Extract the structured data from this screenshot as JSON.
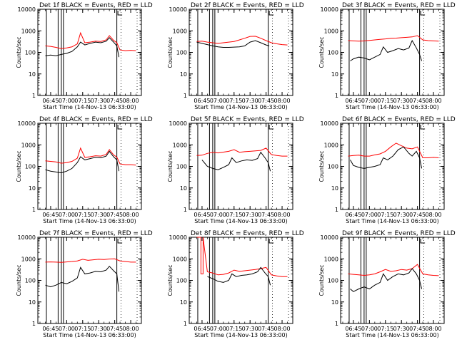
{
  "x_tick_labels": [
    "06:45",
    "07:00",
    "07:15",
    "07:30",
    "07:45",
    "08:00"
  ],
  "y_tick_labels": [
    "1",
    "10",
    "100",
    "1000",
    "10000"
  ],
  "ylabel": "Counts/sec",
  "xlabel": "Start Time (14-Nov-13 06:33:00)",
  "colors": {
    "events": "#000000",
    "lld": "#ff0000",
    "axes": "#000000"
  },
  "chart_data": [
    {
      "type": "line",
      "title": "Det 1f BLACK = Events, RED = LLD",
      "x_ticks": [
        "06:45",
        "07:00",
        "07:15",
        "07:30",
        "07:45",
        "08:00"
      ],
      "y_scale": "log",
      "ylim": [
        1,
        10000
      ],
      "xlabel": "Start Time (14-Nov-13 06:33:00)",
      "ylabel": "Counts/sec",
      "series": [
        {
          "name": "Events",
          "color": "#000000",
          "x": [
            "06:40",
            "06:45",
            "06:50",
            "06:55",
            "07:00",
            "07:05",
            "07:10",
            "07:13",
            "07:17",
            "07:22",
            "07:27",
            "07:32",
            "07:37",
            "07:40",
            "07:44",
            "07:47",
            "07:49"
          ],
          "values": [
            70,
            75,
            70,
            80,
            90,
            110,
            180,
            300,
            220,
            260,
            300,
            280,
            330,
            480,
            300,
            200,
            60
          ]
        },
        {
          "name": "LLD",
          "color": "#ff0000",
          "x": [
            "06:40",
            "06:45",
            "06:50",
            "06:55",
            "07:00",
            "07:05",
            "07:10",
            "07:13",
            "07:17",
            "07:22",
            "07:27",
            "07:32",
            "07:37",
            "07:40",
            "07:44",
            "07:47",
            "07:50",
            "07:55",
            "08:00",
            "08:05"
          ],
          "values": [
            200,
            190,
            170,
            150,
            160,
            180,
            250,
            800,
            280,
            300,
            330,
            320,
            380,
            600,
            360,
            280,
            130,
            120,
            125,
            120
          ]
        }
      ]
    },
    {
      "type": "line",
      "title": "Det 2f BLACK = Events, RED = LLD",
      "x_ticks": [
        "06:45",
        "07:00",
        "07:15",
        "07:30",
        "07:45",
        "08:00"
      ],
      "y_scale": "log",
      "ylim": [
        1,
        10000
      ],
      "xlabel": "Start Time (14-Nov-13 06:33:00)",
      "ylabel": "Counts/sec",
      "series": [
        {
          "name": "Events",
          "color": "#000000",
          "x": [
            "06:40",
            "06:45",
            "06:50",
            "06:55",
            "07:00",
            "07:05",
            "07:10",
            "07:15",
            "07:20",
            "07:25",
            "07:30",
            "07:35",
            "07:40",
            "07:45",
            "07:48"
          ],
          "values": [
            300,
            260,
            230,
            200,
            180,
            170,
            170,
            175,
            180,
            200,
            300,
            350,
            280,
            220,
            200
          ]
        },
        {
          "name": "LLD",
          "color": "#ff0000",
          "x": [
            "06:40",
            "06:45",
            "06:50",
            "06:55",
            "07:00",
            "07:05",
            "07:10",
            "07:15",
            "07:20",
            "07:25",
            "07:30",
            "07:35",
            "07:40",
            "07:45",
            "07:50",
            "07:55",
            "08:00",
            "08:05"
          ],
          "values": [
            320,
            330,
            300,
            280,
            260,
            280,
            300,
            320,
            380,
            450,
            550,
            560,
            450,
            350,
            280,
            250,
            230,
            220
          ]
        }
      ]
    },
    {
      "type": "line",
      "title": "Det 3f BLACK = Events, RED = LLD",
      "x_ticks": [
        "06:45",
        "07:00",
        "07:15",
        "07:30",
        "07:45",
        "08:00"
      ],
      "y_scale": "log",
      "ylim": [
        1,
        10000
      ],
      "xlabel": "Start Time (14-Nov-13 06:33:00)",
      "ylabel": "Counts/sec",
      "series": [
        {
          "name": "Events",
          "color": "#000000",
          "x": [
            "06:42",
            "06:45",
            "06:50",
            "06:55",
            "07:00",
            "07:05",
            "07:10",
            "07:13",
            "07:17",
            "07:22",
            "07:27",
            "07:32",
            "07:37",
            "07:40",
            "07:44",
            "07:47",
            "07:49"
          ],
          "values": [
            40,
            50,
            60,
            55,
            45,
            60,
            80,
            180,
            100,
            120,
            150,
            130,
            160,
            350,
            160,
            80,
            40
          ]
        },
        {
          "name": "LLD",
          "color": "#ff0000",
          "x": [
            "06:40",
            "06:45",
            "06:50",
            "06:55",
            "07:00",
            "07:05",
            "07:10",
            "07:15",
            "07:20",
            "07:25",
            "07:30",
            "07:35",
            "07:40",
            "07:45",
            "07:50",
            "07:55",
            "08:00",
            "08:05"
          ],
          "values": [
            350,
            340,
            330,
            340,
            360,
            380,
            400,
            420,
            450,
            460,
            480,
            500,
            520,
            600,
            380,
            350,
            340,
            330
          ]
        }
      ]
    },
    {
      "type": "line",
      "title": "Det 4f BLACK = Events, RED = LLD",
      "x_ticks": [
        "06:45",
        "07:00",
        "07:15",
        "07:30",
        "07:45",
        "08:00"
      ],
      "y_scale": "log",
      "ylim": [
        1,
        10000
      ],
      "xlabel": "Start Time (14-Nov-13 06:33:00)",
      "ylabel": "Counts/sec",
      "series": [
        {
          "name": "Events",
          "color": "#000000",
          "x": [
            "06:40",
            "06:45",
            "06:50",
            "06:55",
            "07:00",
            "07:05",
            "07:10",
            "07:13",
            "07:17",
            "07:22",
            "07:27",
            "07:32",
            "07:37",
            "07:40",
            "07:44",
            "07:47",
            "07:49"
          ],
          "values": [
            70,
            60,
            55,
            50,
            60,
            80,
            150,
            280,
            200,
            230,
            260,
            250,
            300,
            500,
            280,
            200,
            60
          ]
        },
        {
          "name": "LLD",
          "color": "#ff0000",
          "x": [
            "06:40",
            "06:45",
            "06:50",
            "06:55",
            "07:00",
            "07:05",
            "07:10",
            "07:13",
            "07:17",
            "07:22",
            "07:27",
            "07:32",
            "07:37",
            "07:40",
            "07:44",
            "07:47",
            "07:50",
            "07:55",
            "08:00",
            "08:05"
          ],
          "values": [
            180,
            170,
            160,
            140,
            150,
            170,
            240,
            700,
            260,
            280,
            310,
            300,
            360,
            600,
            340,
            270,
            130,
            120,
            120,
            115
          ]
        }
      ]
    },
    {
      "type": "line",
      "title": "Det 5f BLACK = Events, RED = LLD",
      "x_ticks": [
        "06:45",
        "07:00",
        "07:15",
        "07:30",
        "07:45",
        "08:00"
      ],
      "y_scale": "log",
      "ylim": [
        1,
        10000
      ],
      "xlabel": "Start Time (14-Nov-13 06:33:00)",
      "ylabel": "Counts/sec",
      "series": [
        {
          "name": "Events",
          "color": "#000000",
          "x": [
            "06:45",
            "06:50",
            "06:55",
            "07:00",
            "07:05",
            "07:10",
            "07:13",
            "07:17",
            "07:22",
            "07:27",
            "07:32",
            "07:37",
            "07:40",
            "07:44",
            "07:47",
            "07:49"
          ],
          "values": [
            200,
            100,
            80,
            70,
            90,
            120,
            250,
            150,
            180,
            200,
            190,
            230,
            450,
            250,
            150,
            60
          ]
        },
        {
          "name": "LLD",
          "color": "#ff0000",
          "x": [
            "06:40",
            "06:45",
            "06:50",
            "06:55",
            "07:00",
            "07:05",
            "07:10",
            "07:15",
            "07:20",
            "07:25",
            "07:30",
            "07:35",
            "07:40",
            "07:45",
            "07:50",
            "07:55",
            "08:00",
            "08:05"
          ],
          "values": [
            320,
            330,
            400,
            450,
            420,
            460,
            500,
            600,
            450,
            480,
            500,
            520,
            550,
            700,
            350,
            320,
            300,
            300
          ]
        }
      ]
    },
    {
      "type": "line",
      "title": "Det 6f BLACK = Events, RED = LLD",
      "x_ticks": [
        "06:45",
        "07:00",
        "07:15",
        "07:30",
        "07:45",
        "08:00"
      ],
      "y_scale": "log",
      "ylim": [
        1,
        10000
      ],
      "xlabel": "Start Time (14-Nov-13 06:33:00)",
      "ylabel": "Counts/sec",
      "series": [
        {
          "name": "Events",
          "color": "#000000",
          "x": [
            "06:42",
            "06:45",
            "06:50",
            "06:55",
            "07:00",
            "07:05",
            "07:10",
            "07:13",
            "07:17",
            "07:22",
            "07:27",
            "07:32",
            "07:37",
            "07:40",
            "07:44",
            "07:47",
            "07:49"
          ],
          "values": [
            200,
            110,
            90,
            80,
            90,
            100,
            120,
            250,
            200,
            300,
            600,
            800,
            400,
            300,
            500,
            250,
            80
          ]
        },
        {
          "name": "LLD",
          "color": "#ff0000",
          "x": [
            "06:40",
            "06:45",
            "06:50",
            "06:55",
            "07:00",
            "07:05",
            "07:10",
            "07:15",
            "07:20",
            "07:25",
            "07:30",
            "07:35",
            "07:40",
            "07:45",
            "07:50",
            "07:55",
            "08:00",
            "08:05"
          ],
          "values": [
            300,
            320,
            330,
            300,
            300,
            340,
            380,
            500,
            800,
            1200,
            900,
            700,
            650,
            800,
            250,
            250,
            260,
            250
          ]
        }
      ]
    },
    {
      "type": "line",
      "title": "Det 7f BLACK = Events, RED = LLD",
      "x_ticks": [
        "06:45",
        "07:00",
        "07:15",
        "07:30",
        "07:45",
        "08:00"
      ],
      "y_scale": "log",
      "ylim": [
        1,
        10000
      ],
      "xlabel": "Start Time (14-Nov-13 06:33:00)",
      "ylabel": "Counts/sec",
      "series": [
        {
          "name": "Events",
          "color": "#000000",
          "x": [
            "06:40",
            "06:45",
            "06:50",
            "06:55",
            "07:00",
            "07:05",
            "07:10",
            "07:13",
            "07:17",
            "07:22",
            "07:27",
            "07:32",
            "07:37",
            "07:40",
            "07:44",
            "07:47",
            "07:49"
          ],
          "values": [
            60,
            50,
            60,
            80,
            70,
            90,
            130,
            400,
            200,
            220,
            260,
            250,
            300,
            450,
            280,
            200,
            30
          ]
        },
        {
          "name": "LLD",
          "color": "#ff0000",
          "x": [
            "06:40",
            "06:45",
            "06:50",
            "06:55",
            "07:00",
            "07:05",
            "07:10",
            "07:15",
            "07:20",
            "07:25",
            "07:30",
            "07:35",
            "07:40",
            "07:45",
            "07:50",
            "07:55",
            "08:00",
            "08:05"
          ],
          "values": [
            700,
            720,
            700,
            680,
            720,
            750,
            800,
            950,
            850,
            900,
            950,
            920,
            980,
            1000,
            800,
            750,
            700,
            700
          ]
        }
      ]
    },
    {
      "type": "line",
      "title": "Det 8f BLACK = Events, RED = LLD",
      "x_ticks": [
        "06:45",
        "07:00",
        "07:15",
        "07:30",
        "07:45",
        "08:00"
      ],
      "y_scale": "log",
      "ylim": [
        1,
        10000
      ],
      "xlabel": "Start Time (14-Nov-13 06:33:00)",
      "ylabel": "Counts/sec",
      "series": [
        {
          "name": "Events",
          "color": "#000000",
          "x": [
            "06:50",
            "06:55",
            "07:00",
            "07:05",
            "07:10",
            "07:13",
            "07:17",
            "07:22",
            "07:27",
            "07:32",
            "07:37",
            "07:40",
            "07:44",
            "07:47",
            "07:49"
          ],
          "values": [
            150,
            120,
            90,
            80,
            100,
            200,
            150,
            170,
            180,
            200,
            250,
            400,
            220,
            150,
            60
          ]
        },
        {
          "name": "LLD",
          "color": "#ff0000",
          "x": [
            "06:40",
            "06:44",
            "06:44",
            "06:46",
            "06:46",
            "06:50",
            "06:55",
            "07:00",
            "07:05",
            "07:10",
            "07:15",
            "07:20",
            "07:25",
            "07:30",
            "07:35",
            "07:40",
            "07:45",
            "07:50",
            "07:55",
            "08:00",
            "08:05"
          ],
          "values": [
            10000,
            10000,
            200,
            200,
            10000,
            250,
            220,
            180,
            190,
            220,
            300,
            260,
            280,
            300,
            320,
            350,
            400,
            180,
            160,
            150,
            150
          ]
        }
      ]
    },
    {
      "type": "line",
      "title": "Det 9f BLACK = Events, RED = LLD",
      "x_ticks": [
        "06:45",
        "07:00",
        "07:15",
        "07:30",
        "07:45",
        "08:00"
      ],
      "y_scale": "log",
      "ylim": [
        1,
        10000
      ],
      "xlabel": "Start Time (14-Nov-13 06:33:00)",
      "ylabel": "Counts/sec",
      "series": [
        {
          "name": "Events",
          "color": "#000000",
          "x": [
            "06:42",
            "06:45",
            "06:50",
            "06:55",
            "07:00",
            "07:05",
            "07:10",
            "07:13",
            "07:17",
            "07:22",
            "07:27",
            "07:32",
            "07:37",
            "07:40",
            "07:44",
            "07:47",
            "07:49"
          ],
          "values": [
            40,
            30,
            40,
            50,
            40,
            60,
            80,
            200,
            100,
            150,
            200,
            180,
            220,
            350,
            200,
            100,
            40
          ]
        },
        {
          "name": "LLD",
          "color": "#ff0000",
          "x": [
            "06:40",
            "06:45",
            "06:50",
            "06:55",
            "07:00",
            "07:05",
            "07:10",
            "07:15",
            "07:20",
            "07:25",
            "07:30",
            "07:35",
            "07:40",
            "07:45",
            "07:50",
            "07:55",
            "08:00",
            "08:05"
          ],
          "values": [
            200,
            190,
            180,
            170,
            180,
            200,
            250,
            320,
            260,
            280,
            320,
            300,
            350,
            550,
            200,
            180,
            170,
            165
          ]
        }
      ]
    }
  ]
}
